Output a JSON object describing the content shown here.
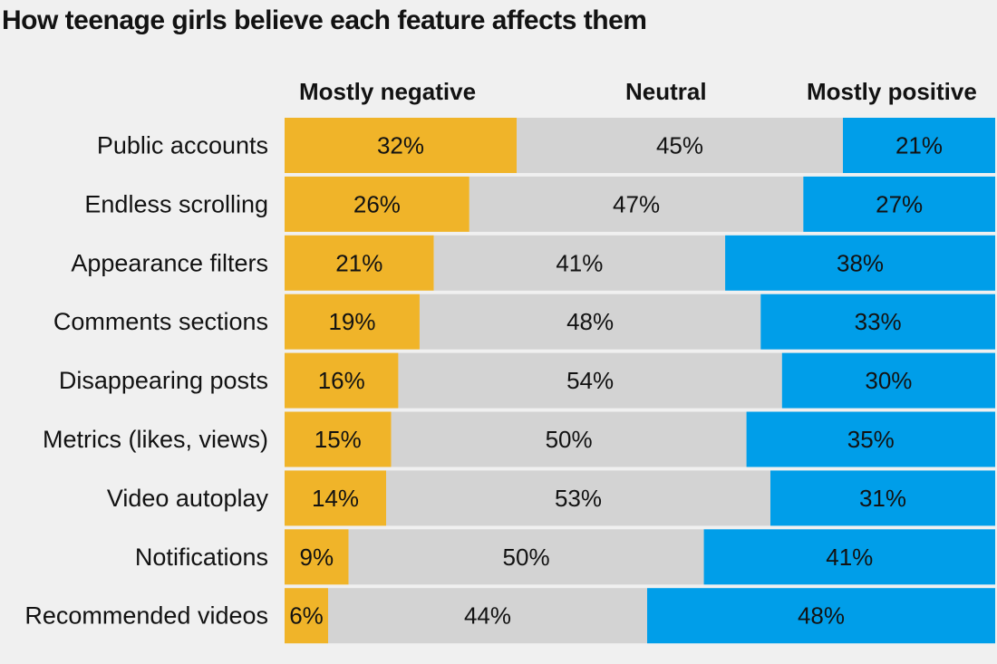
{
  "title": "How teenage girls believe each feature affects them",
  "chart_data": {
    "type": "bar",
    "orientation": "horizontal",
    "stacked": true,
    "normalized": true,
    "title": "How teenage girls believe each feature affects them",
    "categories": [
      "Public accounts",
      "Endless scrolling",
      "Appearance filters",
      "Comments sections",
      "Disappearing posts",
      "Metrics (likes, views)",
      "Video autoplay",
      "Notifications",
      "Recommended videos"
    ],
    "series": [
      {
        "name": "Mostly negative",
        "color": "#f0b429",
        "values": [
          32,
          26,
          21,
          19,
          16,
          15,
          14,
          9,
          6
        ]
      },
      {
        "name": "Neutral",
        "color": "#d3d3d3",
        "values": [
          45,
          47,
          41,
          48,
          54,
          50,
          53,
          50,
          44
        ]
      },
      {
        "name": "Mostly positive",
        "color": "#009ee9",
        "values": [
          21,
          27,
          38,
          33,
          30,
          35,
          31,
          41,
          48
        ]
      }
    ],
    "value_suffix": "%",
    "legend": "top"
  }
}
